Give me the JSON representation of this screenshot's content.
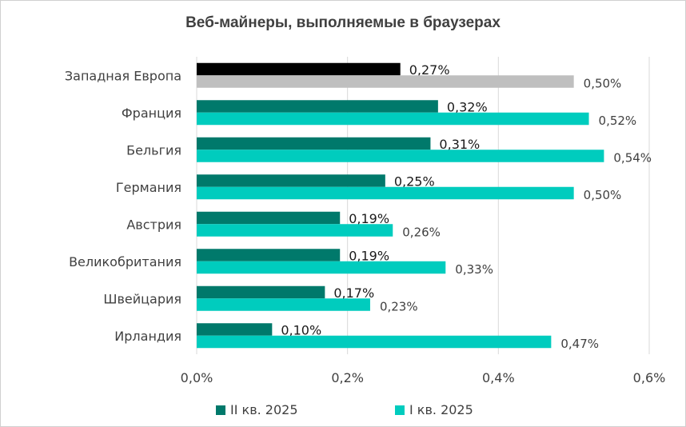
{
  "chart_data": {
    "type": "bar",
    "orientation": "horizontal",
    "title": "Веб-майнеры, выполняемые в браузерах",
    "categories": [
      "Западная Европа",
      "Франция",
      "Бельгия",
      "Германия",
      "Австрия",
      "Великобритания",
      "Швейцария",
      "Ирландия"
    ],
    "series": [
      {
        "name": "II кв. 2025",
        "values": [
          0.27,
          0.32,
          0.31,
          0.25,
          0.19,
          0.19,
          0.17,
          0.1
        ],
        "labels": [
          "0,27%",
          "0,32%",
          "0,31%",
          "0,25%",
          "0,19%",
          "0,19%",
          "0,17%",
          "0,10%"
        ]
      },
      {
        "name": "I кв. 2025",
        "values": [
          0.5,
          0.52,
          0.54,
          0.5,
          0.26,
          0.33,
          0.23,
          0.47
        ],
        "labels": [
          "0,50%",
          "0,52%",
          "0,54%",
          "0,50%",
          "0,26%",
          "0,33%",
          "0,23%",
          "0,47%"
        ]
      }
    ],
    "xlim": [
      0,
      0.6
    ],
    "xticks": [
      "0,0%",
      "0,2%",
      "0,4%",
      "0,6%"
    ],
    "grid": "vertical",
    "legend_position": "bottom",
    "colors": {
      "series1": "#00796b",
      "series2": "#00ccbe",
      "highlight1": "#000000",
      "highlight2": "#bfbfbf",
      "grid": "#d9d9d9"
    }
  }
}
